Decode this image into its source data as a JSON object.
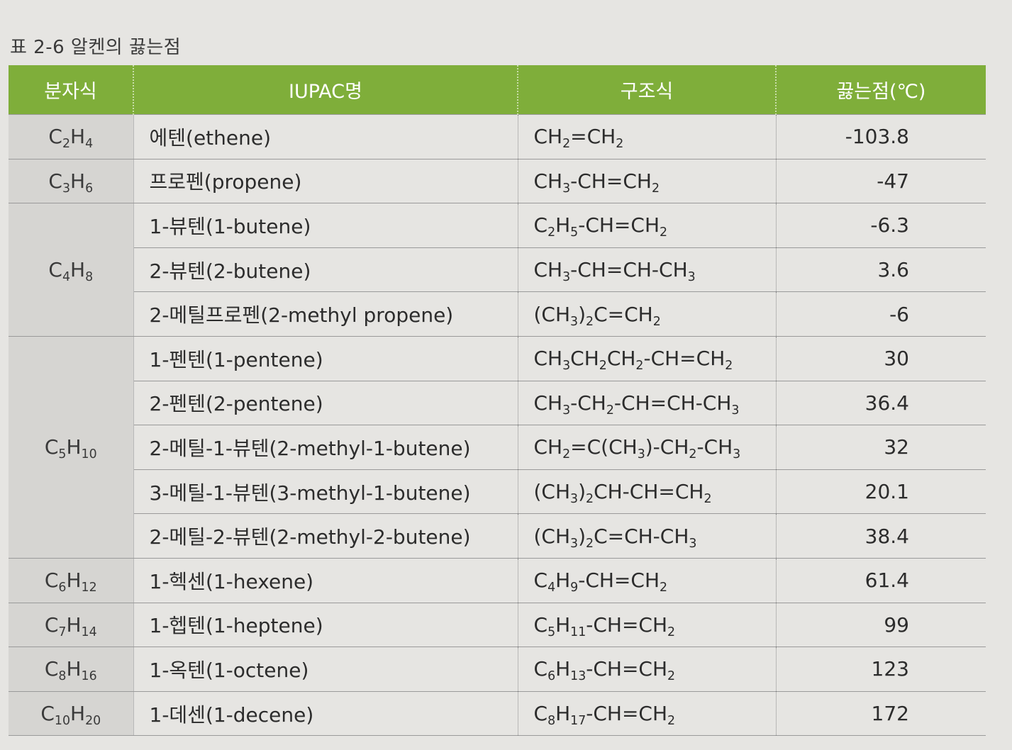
{
  "caption": "표 2-6  알켄의 끓는점",
  "headers": [
    "분자식",
    "IUPAC명",
    "구조식",
    "끓는점(℃)"
  ],
  "groups": [
    {
      "formula": "C<sub>2</sub>H<sub>4</sub>",
      "rows": [
        {
          "name": "에텐(ethene)",
          "structure": "CH<sub>2</sub>=CH<sub>2</sub>",
          "bp": "-103.8"
        }
      ]
    },
    {
      "formula": "C<sub>3</sub>H<sub>6</sub>",
      "rows": [
        {
          "name": "프로펜(propene)",
          "structure": "CH<sub>3</sub>-CH=CH<sub>2</sub>",
          "bp": "-47"
        }
      ]
    },
    {
      "formula": "C<sub>4</sub>H<sub>8</sub>",
      "rows": [
        {
          "name": "1-뷰텐(1-butene)",
          "structure": "C<sub>2</sub>H<sub>5</sub>-CH=CH<sub>2</sub>",
          "bp": "-6.3"
        },
        {
          "name": "2-뷰텐(2-butene)",
          "structure": "CH<sub>3</sub>-CH=CH-CH<sub>3</sub>",
          "bp": "3.6"
        },
        {
          "name": "2-메틸프로펜(2-methyl propene)",
          "structure": "(CH<sub>3</sub>)<sub>2</sub>C=CH<sub>2</sub>",
          "bp": "-6"
        }
      ]
    },
    {
      "formula": "C<sub>5</sub>H<sub>10</sub>",
      "rows": [
        {
          "name": "1-펜텐(1-pentene)",
          "structure": "CH<sub>3</sub>CH<sub>2</sub>CH<sub>2</sub>-CH=CH<sub>2</sub>",
          "bp": "30"
        },
        {
          "name": "2-펜텐(2-pentene)",
          "structure": "CH<sub>3</sub>-CH<sub>2</sub>-CH=CH-CH<sub>3</sub>",
          "bp": "36.4"
        },
        {
          "name": "2-메틸-1-뷰텐(2-methyl-1-butene)",
          "structure": "CH<sub>2</sub>=C(CH<sub>3</sub>)-CH<sub>2</sub>-CH<sub>3</sub>",
          "bp": "32"
        },
        {
          "name": "3-메틸-1-뷰텐(3-methyl-1-butene)",
          "structure": "(CH<sub>3</sub>)<sub>2</sub>CH-CH=CH<sub>2</sub>",
          "bp": "20.1"
        },
        {
          "name": "2-메틸-2-뷰텐(2-methyl-2-butene)",
          "structure": "(CH<sub>3</sub>)<sub>2</sub>C=CH-CH<sub>3</sub>",
          "bp": "38.4"
        }
      ]
    },
    {
      "formula": "C<sub>6</sub>H<sub>12</sub>",
      "rows": [
        {
          "name": "1-헥센(1-hexene)",
          "structure": "C<sub>4</sub>H<sub>9</sub>-CH=CH<sub>2</sub>",
          "bp": "61.4"
        }
      ]
    },
    {
      "formula": "C<sub>7</sub>H<sub>14</sub>",
      "rows": [
        {
          "name": "1-헵텐(1-heptene)",
          "structure": "C<sub>5</sub>H<sub>11</sub>-CH=CH<sub>2</sub>",
          "bp": "99"
        }
      ]
    },
    {
      "formula": "C<sub>8</sub>H<sub>16</sub>",
      "rows": [
        {
          "name": "1-옥텐(1-octene)",
          "structure": "C<sub>6</sub>H<sub>13</sub>-CH=CH<sub>2</sub>",
          "bp": "123"
        }
      ]
    },
    {
      "formula": "C<sub>10</sub>H<sub>20</sub>",
      "rows": [
        {
          "name": "1-데센(1-decene)",
          "structure": "C<sub>8</sub>H<sub>17</sub>-CH=CH<sub>2</sub>",
          "bp": "172"
        }
      ]
    }
  ],
  "colors": {
    "header_bg": "#7fae3a",
    "formula_bg": "#d6d5d2",
    "page_bg": "#e6e5e2"
  }
}
